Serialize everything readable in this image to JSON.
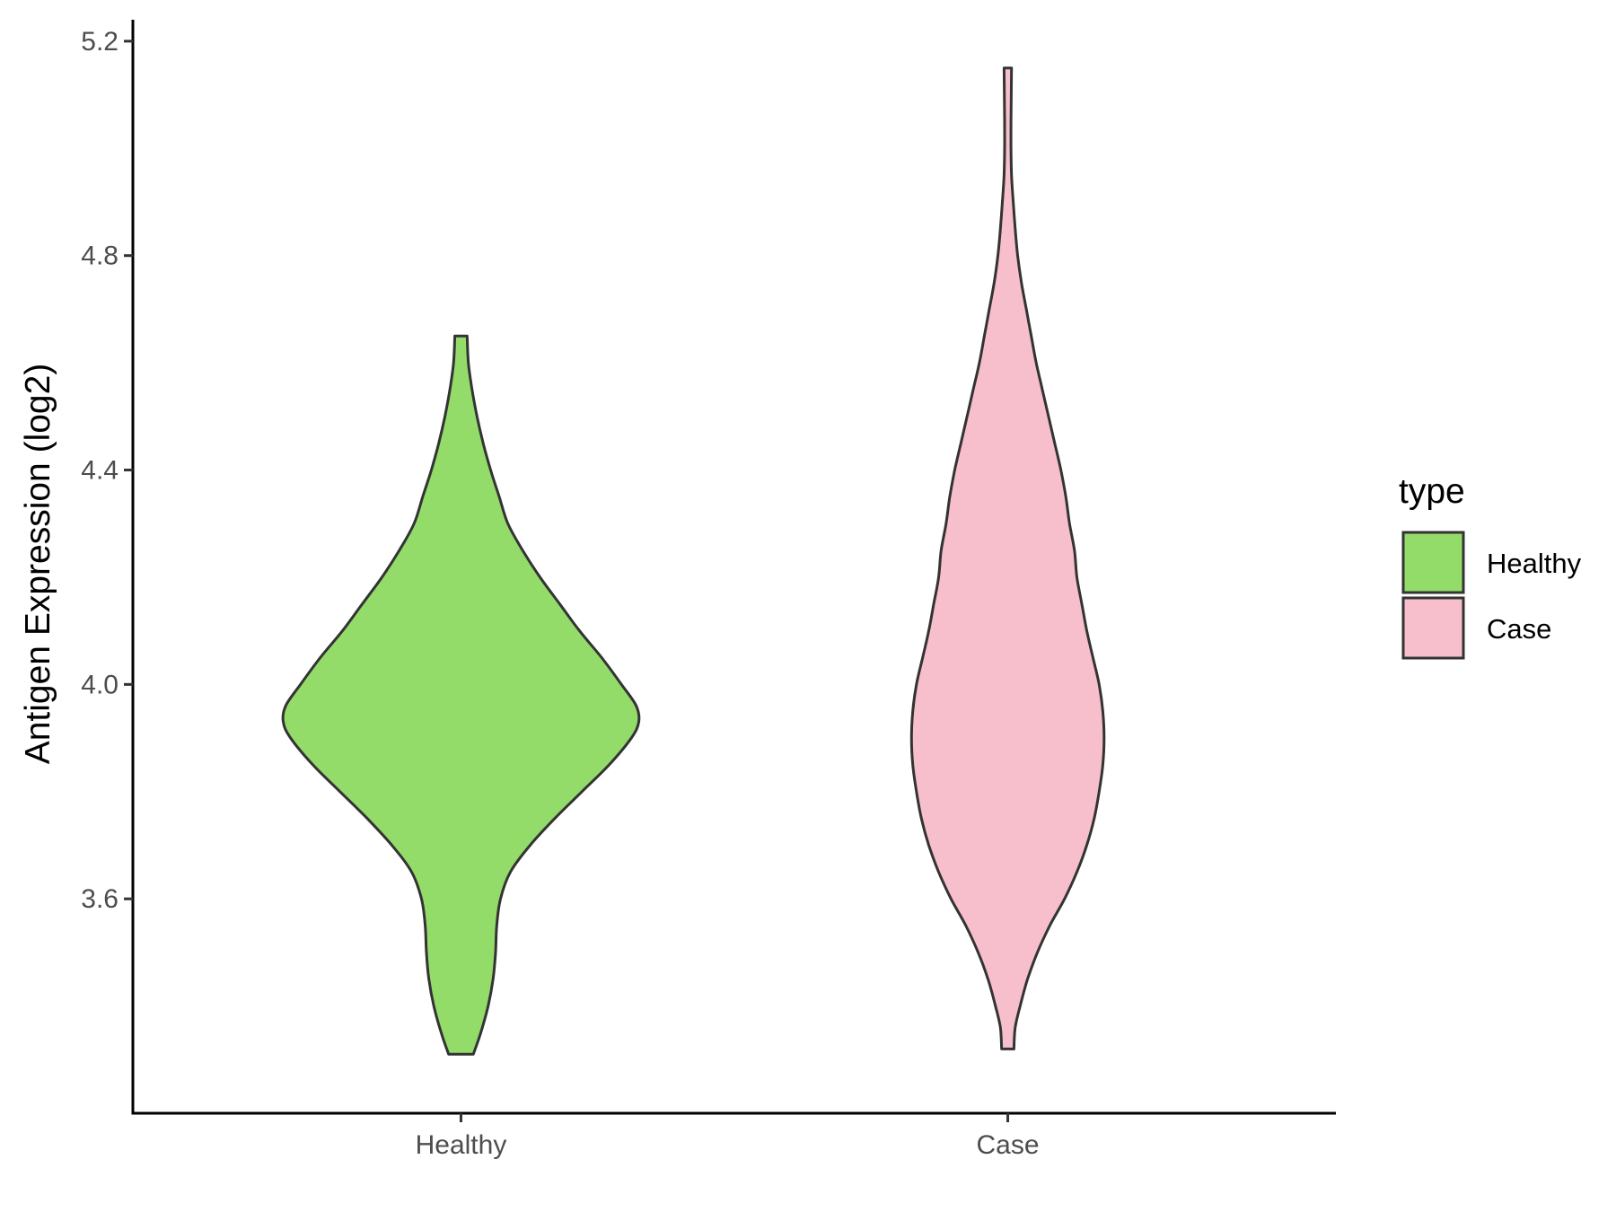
{
  "chart_data": {
    "type": "violin",
    "ylabel": "Antigen Expression (log2)",
    "xlabel": "",
    "ylim": [
      3.2,
      5.24
    ],
    "yticks": [
      "3.6",
      "4.0",
      "4.4",
      "4.8",
      "5.2"
    ],
    "categories": [
      "Healthy",
      "Case"
    ],
    "legend": {
      "title": "type",
      "position": "right",
      "entries": [
        "Healthy",
        "Case"
      ]
    },
    "grid": false,
    "series": [
      {
        "name": "Healthy",
        "color": "#93dc6a",
        "profile": [
          [
            3.31,
            0.05
          ],
          [
            3.35,
            0.08
          ],
          [
            3.4,
            0.11
          ],
          [
            3.45,
            0.13
          ],
          [
            3.5,
            0.14
          ],
          [
            3.55,
            0.145
          ],
          [
            3.6,
            0.16
          ],
          [
            3.65,
            0.2
          ],
          [
            3.7,
            0.28
          ],
          [
            3.75,
            0.38
          ],
          [
            3.8,
            0.49
          ],
          [
            3.85,
            0.6
          ],
          [
            3.9,
            0.69
          ],
          [
            3.93,
            0.72
          ],
          [
            3.96,
            0.71
          ],
          [
            4.0,
            0.65
          ],
          [
            4.05,
            0.57
          ],
          [
            4.1,
            0.48
          ],
          [
            4.15,
            0.4
          ],
          [
            4.2,
            0.32
          ],
          [
            4.25,
            0.25
          ],
          [
            4.3,
            0.19
          ],
          [
            4.35,
            0.155
          ],
          [
            4.4,
            0.12
          ],
          [
            4.45,
            0.09
          ],
          [
            4.5,
            0.065
          ],
          [
            4.55,
            0.045
          ],
          [
            4.6,
            0.03
          ],
          [
            4.65,
            0.025
          ]
        ]
      },
      {
        "name": "Case",
        "color": "#f7bfcb",
        "profile": [
          [
            3.32,
            0.025
          ],
          [
            3.36,
            0.03
          ],
          [
            3.4,
            0.05
          ],
          [
            3.45,
            0.08
          ],
          [
            3.5,
            0.12
          ],
          [
            3.55,
            0.17
          ],
          [
            3.6,
            0.23
          ],
          [
            3.65,
            0.28
          ],
          [
            3.7,
            0.32
          ],
          [
            3.75,
            0.35
          ],
          [
            3.8,
            0.37
          ],
          [
            3.85,
            0.385
          ],
          [
            3.9,
            0.39
          ],
          [
            3.95,
            0.385
          ],
          [
            4.0,
            0.37
          ],
          [
            4.05,
            0.345
          ],
          [
            4.1,
            0.32
          ],
          [
            4.15,
            0.3
          ],
          [
            4.2,
            0.28
          ],
          [
            4.25,
            0.27
          ],
          [
            4.3,
            0.25
          ],
          [
            4.35,
            0.235
          ],
          [
            4.4,
            0.215
          ],
          [
            4.45,
            0.19
          ],
          [
            4.5,
            0.165
          ],
          [
            4.55,
            0.14
          ],
          [
            4.6,
            0.115
          ],
          [
            4.65,
            0.095
          ],
          [
            4.7,
            0.075
          ],
          [
            4.75,
            0.055
          ],
          [
            4.8,
            0.04
          ],
          [
            4.85,
            0.03
          ],
          [
            4.9,
            0.022
          ],
          [
            4.95,
            0.015
          ],
          [
            5.0,
            0.013
          ],
          [
            5.05,
            0.013
          ],
          [
            5.1,
            0.014
          ],
          [
            5.15,
            0.015
          ]
        ]
      }
    ]
  }
}
